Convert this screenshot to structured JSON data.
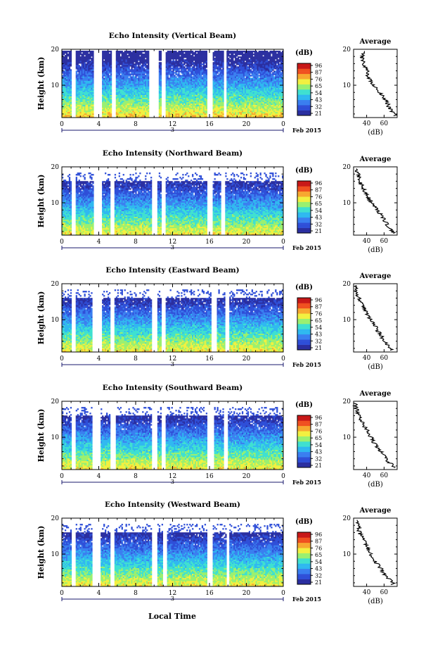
{
  "figure": {
    "xlabel": "Local Time",
    "date_label": "Feb 2015",
    "day_label": "3",
    "x_ticks": [
      "0",
      "4",
      "8",
      "12",
      "16",
      "20",
      "0"
    ],
    "y_ticks": [
      "20",
      "10"
    ],
    "ylabel": "Height (km)",
    "avg_title": "Average",
    "avg_xlabel": "(dB)",
    "cbar_unit": "(dB)"
  },
  "colormap": [
    "#2b2fa0",
    "#2f4fd8",
    "#3a7ff0",
    "#2fb8f0",
    "#3fe0d0",
    "#9af070",
    "#f2f040",
    "#f7a830",
    "#f05020",
    "#c81818"
  ],
  "chart_data": [
    {
      "type": "heatmap",
      "title": "Echo Intensity (Vertical Beam)",
      "xlabel": "Local Time",
      "ylabel": "Height (km)",
      "xlim": [
        0,
        24
      ],
      "ylim": [
        1,
        20
      ],
      "colorbar_ticks": [
        "96",
        "87",
        "76",
        "65",
        "54",
        "43",
        "32",
        "21"
      ],
      "profile": {
        "title": "Average",
        "xlabel": "(dB)",
        "x_ticks": [
          "40",
          "60"
        ],
        "xlim": [
          25,
          75
        ],
        "heights": [
          2,
          4,
          6,
          8,
          10,
          12,
          14,
          16,
          18,
          19.5
        ],
        "values": [
          72,
          65,
          62,
          55,
          48,
          42,
          40,
          36,
          34,
          38
        ]
      }
    },
    {
      "type": "heatmap",
      "title": "Echo Intensity (Northward Beam)",
      "xlabel": "Local Time",
      "ylabel": "Height (km)",
      "xlim": [
        0,
        24
      ],
      "ylim": [
        1,
        20
      ],
      "colorbar_ticks": [
        "96",
        "87",
        "76",
        "65",
        "54",
        "43",
        "32",
        "21"
      ],
      "profile": {
        "title": "Average",
        "xlabel": "(dB)",
        "x_ticks": [
          "40",
          "60"
        ],
        "xlim": [
          25,
          75
        ],
        "heights": [
          2,
          4,
          6,
          8,
          10,
          12,
          14,
          16,
          18,
          19.5
        ],
        "values": [
          70,
          63,
          58,
          52,
          46,
          40,
          36,
          32,
          30,
          29
        ]
      }
    },
    {
      "type": "heatmap",
      "title": "Echo Intensity (Eastward Beam)",
      "xlabel": "Local Time",
      "ylabel": "Height (km)",
      "xlim": [
        0,
        24
      ],
      "ylim": [
        1,
        20
      ],
      "colorbar_ticks": [
        "96",
        "87",
        "76",
        "65",
        "54",
        "43",
        "32",
        "21"
      ],
      "profile": {
        "title": "Average",
        "xlabel": "(dB)",
        "x_ticks": [
          "40",
          "60"
        ],
        "xlim": [
          25,
          75
        ],
        "heights": [
          2,
          4,
          6,
          8,
          10,
          12,
          14,
          16,
          18,
          19.5
        ],
        "values": [
          68,
          60,
          55,
          50,
          45,
          40,
          35,
          31,
          28,
          27
        ]
      }
    },
    {
      "type": "heatmap",
      "title": "Echo Intensity (Southward Beam)",
      "xlabel": "Local Time",
      "ylabel": "Height (km)",
      "xlim": [
        0,
        24
      ],
      "ylim": [
        1,
        20
      ],
      "colorbar_ticks": [
        "96",
        "87",
        "76",
        "65",
        "54",
        "43",
        "32",
        "21"
      ],
      "profile": {
        "title": "Average",
        "xlabel": "(dB)",
        "x_ticks": [
          "40",
          "60"
        ],
        "xlim": [
          25,
          75
        ],
        "heights": [
          2,
          4,
          6,
          8,
          10,
          12,
          14,
          16,
          18,
          19.5
        ],
        "values": [
          70,
          62,
          56,
          50,
          45,
          40,
          35,
          31,
          28,
          27
        ]
      }
    },
    {
      "type": "heatmap",
      "title": "Echo Intensity (Westward Beam)",
      "xlabel": "Local Time",
      "ylabel": "Height (km)",
      "xlim": [
        0,
        24
      ],
      "ylim": [
        1,
        20
      ],
      "colorbar_ticks": [
        "96",
        "87",
        "76",
        "65",
        "54",
        "43",
        "32",
        "21"
      ],
      "profile": {
        "title": "Average",
        "xlabel": "(dB)",
        "x_ticks": [
          "40",
          "60"
        ],
        "xlim": [
          25,
          75
        ],
        "heights": [
          2,
          4,
          6,
          8,
          10,
          12,
          14,
          16,
          18,
          19.5
        ],
        "values": [
          70,
          62,
          56,
          50,
          45,
          40,
          36,
          32,
          30,
          29
        ]
      }
    }
  ]
}
